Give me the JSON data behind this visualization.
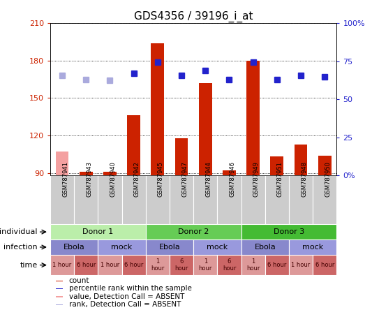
{
  "title": "GDS4356 / 39196_i_at",
  "samples": [
    "GSM787941",
    "GSM787943",
    "GSM787940",
    "GSM787942",
    "GSM787945",
    "GSM787947",
    "GSM787944",
    "GSM787946",
    "GSM787949",
    "GSM787951",
    "GSM787948",
    "GSM787950"
  ],
  "bar_values": [
    107,
    91,
    91,
    136,
    194,
    118,
    162,
    92,
    180,
    103,
    113,
    104
  ],
  "bar_absent": [
    true,
    false,
    false,
    false,
    false,
    false,
    false,
    false,
    false,
    false,
    false,
    false
  ],
  "rank_values": [
    168,
    165,
    164,
    170,
    179,
    168,
    172,
    165,
    179,
    165,
    168,
    167
  ],
  "rank_absent": [
    true,
    true,
    true,
    false,
    false,
    false,
    false,
    false,
    false,
    false,
    false,
    false
  ],
  "ylim_left": [
    88,
    210
  ],
  "ylim_right": [
    0,
    100
  ],
  "yticks_left": [
    90,
    120,
    150,
    180,
    210
  ],
  "yticks_right": [
    0,
    25,
    50,
    75,
    100
  ],
  "yticklabels_right": [
    "0%",
    "25",
    "50",
    "75",
    "100%"
  ],
  "bar_color": "#cc2200",
  "bar_absent_color": "#f4a0a0",
  "rank_color": "#2222cc",
  "rank_absent_color": "#aaaadd",
  "donor_colors": [
    "#bbeeaa",
    "#66cc55",
    "#44bb33"
  ],
  "donors": [
    {
      "label": "Donor 1",
      "start": 0,
      "end": 4
    },
    {
      "label": "Donor 2",
      "start": 4,
      "end": 8
    },
    {
      "label": "Donor 3",
      "start": 8,
      "end": 12
    }
  ],
  "infections": [
    {
      "label": "Ebola",
      "start": 0,
      "end": 2,
      "color": "#8888cc"
    },
    {
      "label": "mock",
      "start": 2,
      "end": 4,
      "color": "#9999dd"
    },
    {
      "label": "Ebola",
      "start": 4,
      "end": 6,
      "color": "#8888cc"
    },
    {
      "label": "mock",
      "start": 6,
      "end": 8,
      "color": "#9999dd"
    },
    {
      "label": "Ebola",
      "start": 8,
      "end": 10,
      "color": "#8888cc"
    },
    {
      "label": "mock",
      "start": 10,
      "end": 12,
      "color": "#9999dd"
    }
  ],
  "time_labels": [
    "1 hour",
    "6 hour",
    "1 hour",
    "6 hour",
    "1\nhour",
    "6\nhour",
    "1\nhour",
    "6\nhour",
    "1\nhour",
    "6 hour",
    "1 hour",
    "6 hour"
  ],
  "time_color_1h": "#dd9999",
  "time_color_6h": "#cc6666",
  "time_is_1h": [
    true,
    false,
    true,
    false,
    true,
    false,
    true,
    false,
    true,
    false,
    true,
    false
  ],
  "bg_color": "#ffffff",
  "label_fontsize": 8,
  "title_fontsize": 11,
  "legend_items": [
    {
      "color": "#cc2200",
      "label": "count"
    },
    {
      "color": "#2222cc",
      "label": "percentile rank within the sample"
    },
    {
      "color": "#f4a0a0",
      "label": "value, Detection Call = ABSENT"
    },
    {
      "color": "#aaaadd",
      "label": "rank, Detection Call = ABSENT"
    }
  ]
}
